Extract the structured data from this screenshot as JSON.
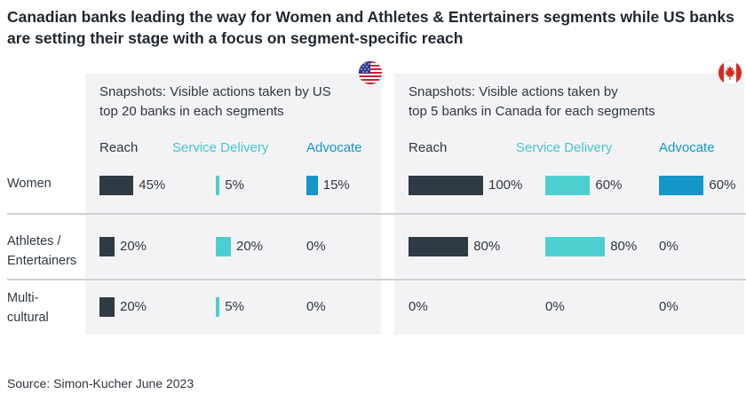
{
  "title": "Canadian banks leading the way for Women and Athletes & Entertainers segments while US banks are setting their stage with a focus on segment-specific reach",
  "source": "Source: Simon-Kucher June 2023",
  "colors": {
    "reach": "#2e3b45",
    "service_delivery": "#4dcfd0",
    "advocate": "#1596c8"
  },
  "panels": {
    "us": {
      "flag": "us-flag",
      "title_line1": "Snapshots: Visible actions taken by US",
      "title_line2": "top 20 banks in each segments"
    },
    "ca": {
      "flag": "canada-flag",
      "title_line1": "Snapshots: Visible actions taken by",
      "title_line2": "top 5 banks in Canada for each segments"
    }
  },
  "column_headers": {
    "reach": "Reach",
    "service_delivery": "Service Delivery",
    "advocate": "Advocate"
  },
  "rows": [
    {
      "line1": "Women",
      "line2": ""
    },
    {
      "line1": "Athletes /",
      "line2": "Entertainers"
    },
    {
      "line1": "Multi-",
      "line2": "cultural"
    }
  ],
  "chart_data": {
    "type": "bar",
    "title": "Canadian banks leading the way for Women and Athletes & Entertainers segments while US banks are setting their stage with a focus on segment-specific reach",
    "categories": [
      "Women",
      "Athletes / Entertainers",
      "Multi-cultural"
    ],
    "unit": "%",
    "groups": [
      {
        "id": "us",
        "name": "Snapshots: Visible actions taken by US top 20 banks in each segments",
        "series": [
          {
            "name": "Reach",
            "values": [
              45,
              20,
              20
            ],
            "labels": [
              "45%",
              "20%",
              "20%"
            ]
          },
          {
            "name": "Service Delivery",
            "values": [
              5,
              20,
              5
            ],
            "labels": [
              "5%",
              "20%",
              "5%"
            ]
          },
          {
            "name": "Advocate",
            "values": [
              15,
              0,
              0
            ],
            "labels": [
              "15%",
              "0%",
              "0%"
            ]
          }
        ]
      },
      {
        "id": "ca",
        "name": "Snapshots: Visible actions taken by top 5 banks in Canada for each segments",
        "series": [
          {
            "name": "Reach",
            "values": [
              100,
              80,
              0
            ],
            "labels": [
              "100%",
              "80%",
              "0%"
            ]
          },
          {
            "name": "Service Delivery",
            "values": [
              60,
              80,
              0
            ],
            "labels": [
              "60%",
              "80%",
              "0%"
            ]
          },
          {
            "name": "Advocate",
            "values": [
              60,
              0,
              0
            ],
            "labels": [
              "60%",
              "0%",
              "0%"
            ]
          }
        ]
      }
    ]
  }
}
